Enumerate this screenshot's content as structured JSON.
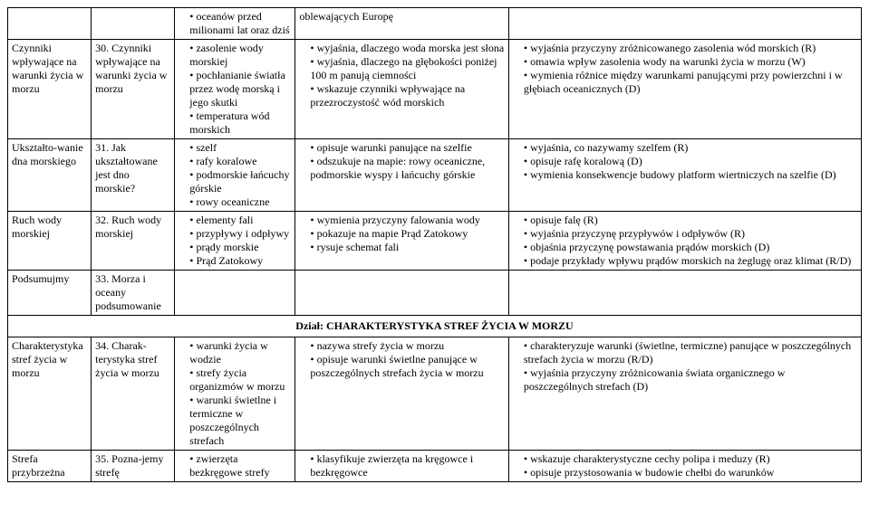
{
  "rows": [
    {
      "c1": "",
      "c2": "",
      "c3": [
        "oceanów przed milionami lat oraz dziś"
      ],
      "c4_plain": "oblewających Europę",
      "c5_plain": ""
    },
    {
      "c1": "Czynniki wpływające na warunki życia w morzu",
      "c2": "30. Czynniki wpływające na warunki życia w morzu",
      "c3": [
        "zasolenie wody morskiej",
        "pochłanianie światła przez wodę morską i jego skutki",
        "temperatura wód morskich"
      ],
      "c4": [
        "wyjaśnia, dlaczego woda morska jest słona",
        "wyjaśnia, dlaczego na głębokości poniżej 100 m panują ciemności",
        "wskazuje czynniki wpływające na przezroczystość wód morskich"
      ],
      "c5": [
        "wyjaśnia przyczyny zróżnicowanego zasolenia wód morskich (R)",
        "omawia wpływ zasolenia wody na warunki życia w morzu (W)",
        "wymienia różnice między warunkami panującymi przy powierzchni i w głębiach oceanicznych (D)"
      ]
    },
    {
      "c1": "Ukształto-wanie dna morskiego",
      "c2": "31. Jak ukształtowane jest dno morskie?",
      "c3": [
        "szelf",
        "rafy koralowe",
        "podmorskie łańcuchy górskie",
        "rowy oceaniczne"
      ],
      "c4": [
        "opisuje warunki panujące na szelfie",
        "odszukuje na mapie: rowy oceaniczne, podmorskie wyspy i łańcuchy górskie"
      ],
      "c5": [
        "wyjaśnia, co nazywamy szelfem (R)",
        "opisuje rafę koralową (D)",
        "wymienia konsekwencje budowy platform wiertniczych na szelfie (D)"
      ]
    },
    {
      "c1": "Ruch wody morskiej",
      "c2": "32. Ruch wody morskiej",
      "c3": [
        "elementy fali",
        "przypływy i odpływy",
        "prądy morskie",
        "Prąd Zatokowy"
      ],
      "c4": [
        "wymienia przyczyny falowania wody",
        "pokazuje na mapie Prąd Zatokowy",
        "rysuje schemat fali"
      ],
      "c5": [
        "opisuje falę (R)",
        "wyjaśnia przyczynę przypływów i odpływów (R)",
        "objaśnia przyczynę powstawania prądów morskich (D)",
        "podaje przykłady wpływu prądów morskich na żeglugę oraz klimat (R/D)"
      ]
    },
    {
      "c1": "Podsumujmy",
      "c2": "33. Morza i oceany podsumowanie",
      "c3_plain": "",
      "c4_plain": "",
      "c5_plain": ""
    }
  ],
  "section_header": "Dział: CHARAKTERYSTYKA STREF ŻYCIA W MORZU",
  "rows2": [
    {
      "c1": "Charakterystyka stref życia w morzu",
      "c2": "34. Charak-terystyka stref życia w morzu",
      "c3": [
        "warunki życia w wodzie",
        "strefy życia organizmów w morzu",
        "warunki świetlne i termiczne w poszczególnych strefach"
      ],
      "c4": [
        "nazywa strefy życia w morzu",
        "opisuje warunki świetlne panujące w poszczególnych strefach życia w morzu"
      ],
      "c5": [
        "charakteryzuje warunki (świetlne, termiczne) panujące w poszczególnych strefach życia w morzu (R/D)",
        "wyjaśnia przyczyny zróżnicowania świata organicznego w poszczególnych strefach (D)"
      ]
    },
    {
      "c1": "Strefa przybrzeżna",
      "c2": "35. Pozna-jemy strefę",
      "c3": [
        "zwierzęta bezkręgowe strefy"
      ],
      "c4": [
        "klasyfikuje zwierzęta na kręgowce i bezkręgowce"
      ],
      "c5": [
        "wskazuje charakterystyczne cechy polipa i meduzy (R)",
        "opisuje przystosowania w budowie chełbi do warunków"
      ]
    }
  ]
}
